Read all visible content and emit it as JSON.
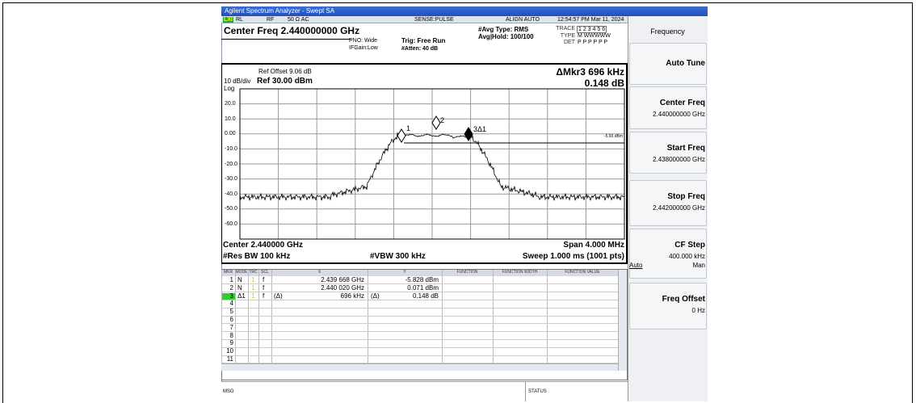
{
  "window": {
    "title": "Agilent Spectrum Analyzer - Swept SA"
  },
  "status": {
    "badge": "LXI",
    "rl": "RL",
    "rf": "RF",
    "coupling": "50 Ω  AC",
    "sense": "SENSE:PULSE",
    "align": "ALIGN AUTO",
    "time": "12:54:57 PM Mar 11, 2024"
  },
  "settings": {
    "center": "Center Freq 2.440000000 GHz",
    "pno": "PNO: Wide",
    "ifgain": "IFGain:Low",
    "trig": "Trig: Free Run",
    "atten": "#Atten: 40 dB",
    "avg_type": "#Avg Type: RMS",
    "avg_hold": "Avg|Hold: 100/100",
    "trace_label": "TRACE",
    "trace_nums": "1 2 3 4 5 6",
    "type_label": "TYPE",
    "type_values": "M WWWWW",
    "det_label": "DET",
    "det_values": "P P P P P P"
  },
  "graph": {
    "ref_offset": "Ref Offset 9.06 dB",
    "scale": "10 dB/div",
    "ref_level": "Ref 30.00 dBm",
    "log": "Log",
    "marker_readout": "ΔMkr3 696 kHz",
    "marker_value": "0.148 dB",
    "y_labels": [
      "20.0",
      "10.0",
      "0.00",
      "-10.0",
      "-20.0",
      "-30.0",
      "-40.0",
      "-50.0",
      "-60.0"
    ],
    "markers": [
      "1",
      "2",
      "3Δ1"
    ],
    "line_label": "-5.93 dBm",
    "center": "Center 2.440000 GHz",
    "span": "Span 4.000 MHz",
    "rbw": "#Res BW 100 kHz",
    "vbw": "#VBW 300 kHz",
    "sweep": "Sweep  1.000 ms (1001 pts)"
  },
  "table": {
    "headers": [
      "MKR",
      "MODE",
      "TRC",
      "SCL",
      "X",
      "Y",
      "FUNCTION",
      "FUNCTION WIDTH",
      "FUNCTION VALUE"
    ],
    "rows": [
      {
        "mkr": "1",
        "mode": "N",
        "trc": "1",
        "scl": "f",
        "x": "2.439 668 GHz",
        "y": "-5.828 dBm"
      },
      {
        "mkr": "2",
        "mode": "N",
        "trc": "1",
        "scl": "f",
        "x": "2.440 020 GHz",
        "y": "0.071 dBm"
      },
      {
        "mkr": "3",
        "mode": "Δ1",
        "trc": "1",
        "scl": "f",
        "x_note": "(Δ)",
        "x": "696 kHz",
        "y_note": "(Δ)",
        "y": "0.148 dB"
      },
      {
        "mkr": "4"
      },
      {
        "mkr": "5"
      },
      {
        "mkr": "6"
      },
      {
        "mkr": "7"
      },
      {
        "mkr": "8"
      },
      {
        "mkr": "9"
      },
      {
        "mkr": "10"
      },
      {
        "mkr": "11"
      }
    ]
  },
  "footer": {
    "msg": "MSG",
    "status": "STATUS"
  },
  "menu": {
    "title": "Frequency",
    "items": [
      {
        "label": "Auto Tune"
      },
      {
        "label": "Center Freq",
        "value": "2.440000000 GHz"
      },
      {
        "label": "Start Freq",
        "value": "2.438000000 GHz"
      },
      {
        "label": "Stop Freq",
        "value": "2.442000000 GHz"
      },
      {
        "label": "CF Step",
        "value": "400.000 kHz",
        "options": [
          "Auto",
          "Man"
        ]
      },
      {
        "label": "Freq Offset",
        "value": "0 Hz"
      }
    ]
  }
}
